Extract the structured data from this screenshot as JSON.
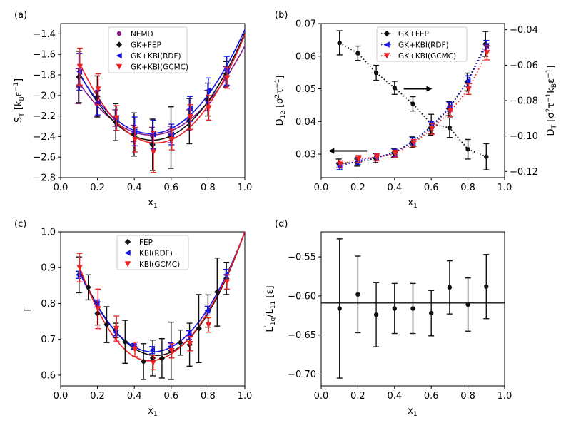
{
  "chart_data": [
    {
      "type": "scatter",
      "panel_label": "(a)",
      "xlabel": "x₁",
      "ylabel": "S_T [k_B ε⁻¹]",
      "xlim": [
        0.0,
        1.0
      ],
      "ylim": [
        -2.8,
        -1.3
      ],
      "xticks": [
        "0.0",
        "0.2",
        "0.4",
        "0.6",
        "0.8",
        "1.0"
      ],
      "yticks": [
        "-2.8",
        "-2.6",
        "-2.4",
        "-2.2",
        "-2.0",
        "-1.8",
        "-1.6",
        "-1.4"
      ],
      "legend_position": "upper-center",
      "x": [
        0.1,
        0.2,
        0.3,
        0.4,
        0.5,
        0.6,
        0.7,
        0.8,
        0.9
      ],
      "series": [
        {
          "name": "NEMD",
          "marker": "circle",
          "color": "#8b1c8b",
          "values": [
            -1.91,
            -2.08,
            -2.22,
            -2.37,
            -2.39,
            -2.38,
            -2.24,
            -2.05,
            -1.82
          ],
          "errors": [
            0.17,
            0.12,
            0.08,
            0.08,
            0.08,
            0.08,
            0.1,
            0.1,
            0.1
          ],
          "fit_end": -1.52
        },
        {
          "name": "GK+FEP",
          "marker": "diamond",
          "color": "#111111",
          "values": [
            -1.82,
            -2.01,
            -2.26,
            -2.38,
            -2.48,
            -2.41,
            -2.25,
            -2.04,
            -1.79
          ],
          "errors": [
            0.25,
            0.2,
            0.18,
            0.21,
            0.25,
            0.3,
            0.22,
            0.16,
            0.12
          ],
          "fit_end": -1.38
        },
        {
          "name": "GK+KBI(RDF)",
          "marker": "tri-left",
          "color": "#1414e6",
          "values": [
            -1.77,
            -2.07,
            -2.22,
            -2.35,
            -2.38,
            -2.38,
            -2.13,
            -1.95,
            -1.76
          ],
          "errors": [
            0.18,
            0.12,
            0.12,
            0.14,
            0.14,
            0.1,
            0.12,
            0.12,
            0.14
          ],
          "fit_end": -1.36
        },
        {
          "name": "GK+KBI(GCMC)",
          "marker": "tri-down",
          "color": "#ee2222",
          "values": [
            -1.72,
            -1.94,
            -2.22,
            -2.43,
            -2.55,
            -2.43,
            -2.21,
            -2.12,
            -1.83
          ],
          "errors": [
            0.18,
            0.15,
            0.12,
            0.12,
            0.2,
            0.1,
            0.12,
            0.12,
            0.1
          ],
          "fit_end": -1.4
        }
      ]
    },
    {
      "type": "line",
      "panel_label": "(b)",
      "xlabel": "x₁",
      "ylabel": "D₁₂ [σ²τ⁻¹]",
      "ylabel_right": "D_T [σ²τ⁻¹ k_B ε⁻¹]",
      "xlim": [
        0.0,
        1.0
      ],
      "ylim": [
        0.0228,
        0.07
      ],
      "ylim_right": [
        -0.1235,
        -0.0365
      ],
      "xticks": [
        "0.0",
        "0.2",
        "0.4",
        "0.6",
        "0.8",
        "1.0"
      ],
      "yticks": [
        "0.03",
        "0.04",
        "0.05",
        "0.06",
        "0.07"
      ],
      "yticks_right": [
        "-0.12",
        "-0.10",
        "-0.08",
        "-0.06",
        "-0.04"
      ],
      "legend_position": "upper-center",
      "x": [
        0.1,
        0.2,
        0.3,
        0.4,
        0.5,
        0.6,
        0.7,
        0.8,
        0.9
      ],
      "d12": {
        "name": "D12 GK",
        "values": [
          0.0641,
          0.0609,
          0.0549,
          0.0503,
          0.0454,
          0.0392,
          0.0381,
          0.0315,
          0.0292
        ],
        "errors": [
          0.0037,
          0.0022,
          0.0023,
          0.002,
          0.0022,
          0.003,
          0.003,
          0.003,
          0.004
        ]
      },
      "series": [
        {
          "name": "GK+FEP",
          "marker": "diamond",
          "color": "#111111",
          "values": [
            -0.1155,
            -0.115,
            -0.1125,
            -0.1095,
            -0.1035,
            -0.0955,
            -0.0845,
            -0.0695,
            -0.048
          ],
          "errors": [
            0.0025,
            0.002,
            0.0025,
            0.0025,
            0.003,
            0.004,
            0.004,
            0.005,
            0.007
          ]
        },
        {
          "name": "GK+KBI(RDF)",
          "marker": "tri-left",
          "color": "#1414e6",
          "values": [
            -0.117,
            -0.114,
            -0.112,
            -0.1095,
            -0.103,
            -0.0945,
            -0.0835,
            -0.069,
            -0.049
          ],
          "errors": [
            0.002,
            0.002,
            0.002,
            0.002,
            0.002,
            0.0025,
            0.0025,
            0.003,
            0.003
          ]
        },
        {
          "name": "GK+KBI(GCMC)",
          "marker": "tri-down",
          "color": "#ee2222",
          "values": [
            -0.116,
            -0.113,
            -0.112,
            -0.11,
            -0.104,
            -0.096,
            -0.086,
            -0.0735,
            -0.053
          ],
          "errors": [
            0.002,
            0.002,
            0.002,
            0.002,
            0.002,
            0.003,
            0.003,
            0.003,
            0.004
          ]
        }
      ]
    },
    {
      "type": "scatter",
      "panel_label": "(c)",
      "xlabel": "x₁",
      "ylabel": "Γ",
      "xlim": [
        0.0,
        1.0
      ],
      "ylim": [
        0.57,
        1.0
      ],
      "xticks": [
        "0.0",
        "0.2",
        "0.4",
        "0.6",
        "0.8",
        "1.0"
      ],
      "yticks": [
        "0.6",
        "0.7",
        "0.8",
        "0.9",
        "1.0"
      ],
      "legend_position": "upper-center",
      "series": [
        {
          "name": "FEP",
          "marker": "diamond",
          "color": "#111111",
          "x": [
            0.1,
            0.15,
            0.2,
            0.25,
            0.3,
            0.35,
            0.4,
            0.45,
            0.5,
            0.55,
            0.6,
            0.65,
            0.7,
            0.75,
            0.8,
            0.85,
            0.9
          ],
          "values": [
            0.88,
            0.845,
            0.772,
            0.741,
            0.725,
            0.693,
            0.68,
            0.638,
            0.648,
            0.647,
            0.668,
            0.691,
            0.685,
            0.73,
            0.779,
            0.832,
            0.87
          ],
          "errors": [
            0.05,
            0.035,
            0.032,
            0.05,
            0.02,
            0.06,
            0.005,
            0.05,
            0.05,
            0.055,
            0.08,
            0.035,
            0.06,
            0.095,
            0.045,
            0.095,
            0.045
          ]
        },
        {
          "name": "KBI(RDF)",
          "marker": "tri-left",
          "color": "#1414e6",
          "x": [
            0.1,
            0.2,
            0.3,
            0.4,
            0.5,
            0.6,
            0.7,
            0.8,
            0.9
          ],
          "values": [
            0.88,
            0.8,
            0.72,
            0.68,
            0.67,
            0.68,
            0.712,
            0.78,
            0.88
          ],
          "errors": [
            0.01,
            0.01,
            0.01,
            0.008,
            0.01,
            0.01,
            0.012,
            0.012,
            0.015
          ]
        },
        {
          "name": "KBI(GCMC)",
          "marker": "tri-down",
          "color": "#ee2222",
          "x": [
            0.1,
            0.2,
            0.3,
            0.4,
            0.5,
            0.6,
            0.7,
            0.8,
            0.9
          ],
          "values": [
            0.9,
            0.785,
            0.73,
            0.672,
            0.635,
            0.668,
            0.688,
            0.74,
            0.86
          ],
          "errors": [
            0.04,
            0.055,
            0.035,
            0.02,
            0.02,
            0.02,
            0.02,
            0.02,
            0.02
          ]
        }
      ],
      "fits": [
        {
          "name": "FEP fit",
          "color": "#111111",
          "min_x": 0.52,
          "min_y": 0.655,
          "end_y": 1.0,
          "start_y": 0.895
        },
        {
          "name": "KBI(RDF) fit",
          "color": "#1414e6",
          "min_x": 0.5,
          "min_y": 0.665,
          "end_y": 1.0,
          "start_y": 0.89
        },
        {
          "name": "KBI(GCMC) fit",
          "color": "#ee2222",
          "min_x": 0.48,
          "min_y": 0.64,
          "end_y": 1.0,
          "start_y": 0.905
        }
      ]
    },
    {
      "type": "scatter",
      "panel_label": "(d)",
      "xlabel": "x₁",
      "ylabel": "L′₁q / L₁₁ [ε]",
      "xlim": [
        0.0,
        1.0
      ],
      "ylim": [
        -0.715,
        -0.518
      ],
      "xticks": [
        "0.0",
        "0.2",
        "0.4",
        "0.6",
        "0.8",
        "1.0"
      ],
      "yticks": [
        "-0.70",
        "-0.65",
        "-0.60",
        "-0.55"
      ],
      "hline": -0.609,
      "series": [
        {
          "name": "L'1q/L11",
          "marker": "circle",
          "color": "#111111",
          "x": [
            0.1,
            0.2,
            0.3,
            0.4,
            0.5,
            0.6,
            0.7,
            0.8,
            0.9
          ],
          "values": [
            -0.616,
            -0.598,
            -0.624,
            -0.616,
            -0.616,
            -0.622,
            -0.589,
            -0.611,
            -0.588
          ],
          "errors": [
            0.089,
            0.049,
            0.041,
            0.032,
            0.032,
            0.029,
            0.034,
            0.034,
            0.041
          ]
        }
      ]
    }
  ]
}
